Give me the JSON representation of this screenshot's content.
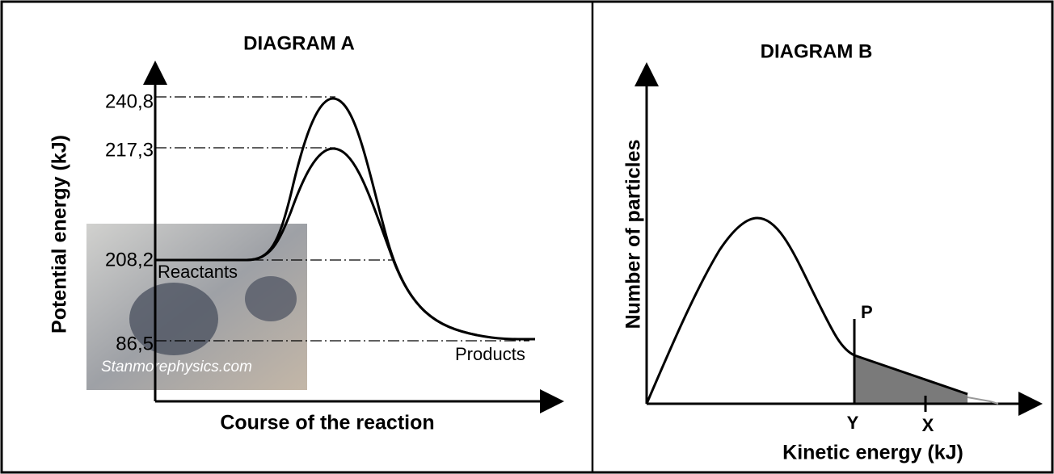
{
  "diagram_a": {
    "title": "DIAGRAM A",
    "y_label": "Potential energy (kJ)",
    "x_label": "Course of the reaction",
    "levels": [
      "240,8",
      "217,3",
      "208,2",
      "86,5"
    ],
    "reactants": "Reactants",
    "products": "Products",
    "watermark": "Stanmorephysics.com"
  },
  "diagram_b": {
    "title": "DIAGRAM B",
    "y_label": "Number of particles",
    "x_label": "Kinetic energy (kJ)",
    "line_label": "P",
    "marks": [
      "Y",
      "X"
    ]
  }
}
